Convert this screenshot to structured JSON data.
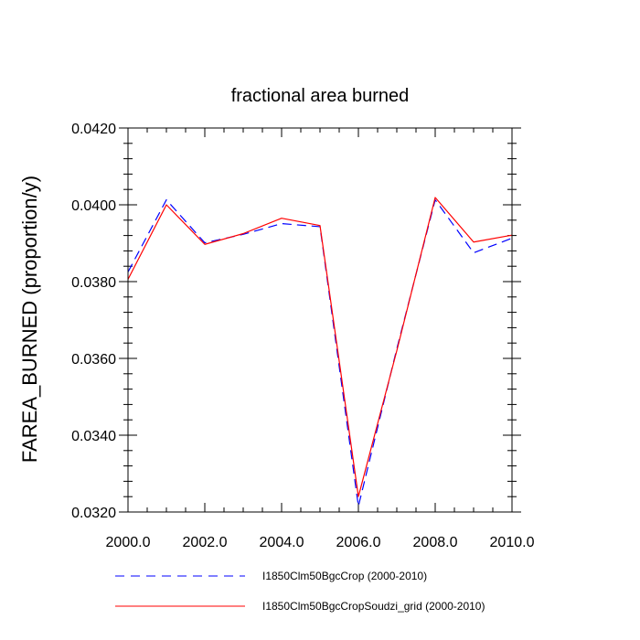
{
  "chart_data": {
    "type": "line",
    "title": "fractional area burned",
    "xlabel": "",
    "ylabel": "FAREA_BURNED  (proportion/y)",
    "xlim": [
      2000,
      2010
    ],
    "ylim": [
      0.032,
      0.042
    ],
    "x_ticks": [
      "2000.0",
      "2002.0",
      "2004.0",
      "2006.0",
      "2008.0",
      "2010.0"
    ],
    "y_ticks": [
      "0.0320",
      "0.0340",
      "0.0360",
      "0.0380",
      "0.0400",
      "0.0420"
    ],
    "grid": false,
    "legend_position": "bottom",
    "x": [
      2000,
      2001,
      2002,
      2003,
      2004,
      2005,
      2006,
      2007,
      2008,
      2009,
      2010
    ],
    "series": [
      {
        "name": "I1850Clm50BgcCrop (2000-2010)",
        "color": "#0000ff",
        "dash": "dashed",
        "values": [
          0.03825,
          0.04013,
          0.03901,
          0.03923,
          0.03951,
          0.03943,
          0.03215,
          0.03625,
          0.04013,
          0.03875,
          0.03913
        ]
      },
      {
        "name": "I1850Clm50BgcCropSoudzi_grid (2000-2010)",
        "color": "#ff0000",
        "dash": "solid",
        "values": [
          0.03806,
          0.04,
          0.03897,
          0.03925,
          0.03965,
          0.03946,
          0.0324,
          0.0362,
          0.04019,
          0.03903,
          0.03921
        ]
      }
    ]
  }
}
